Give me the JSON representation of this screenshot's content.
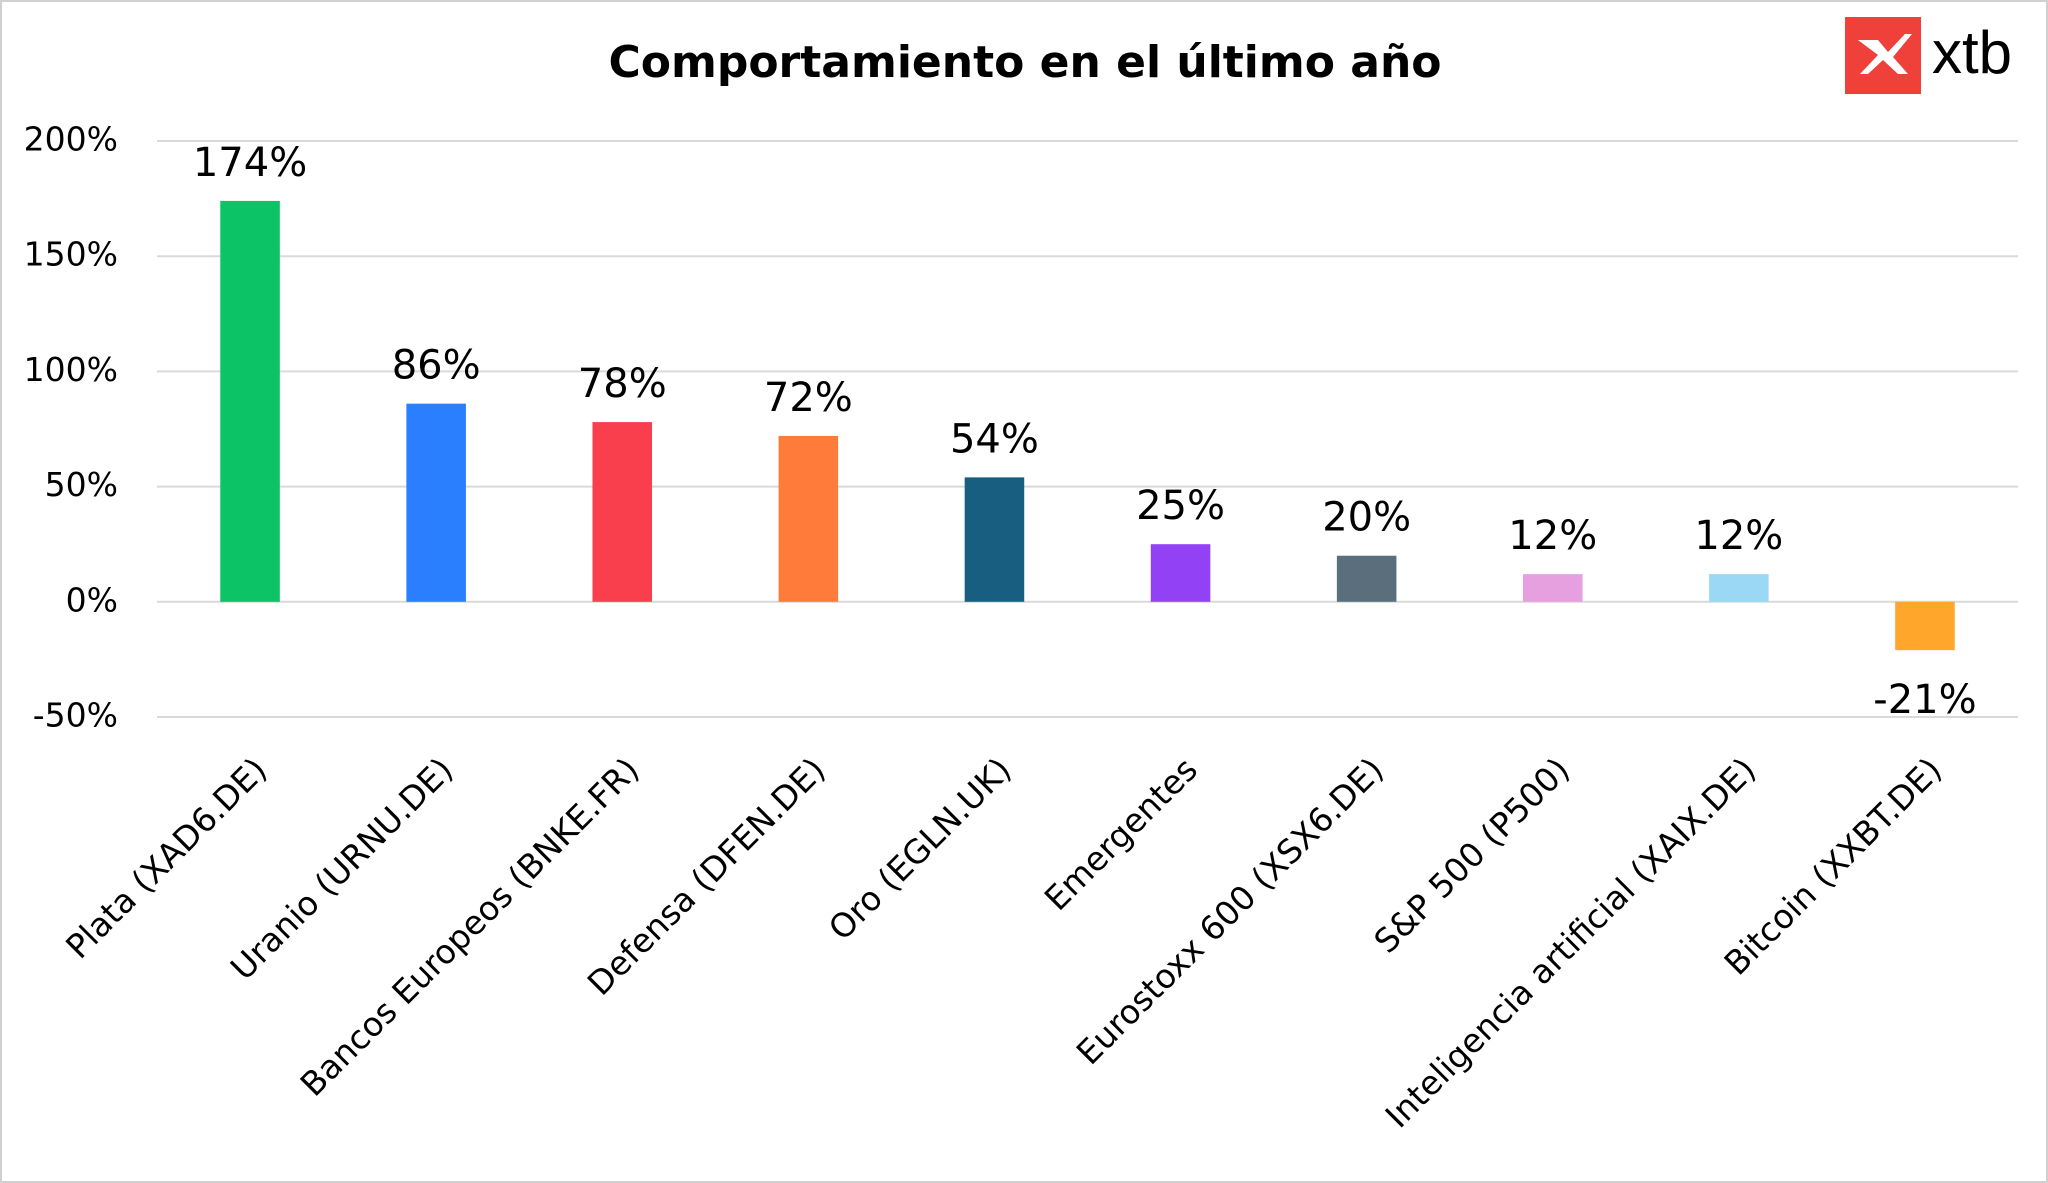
{
  "chart_data": {
    "type": "bar",
    "title": "Comportamiento en el último año",
    "logo": "xtb",
    "categories": [
      "Plata (XAD6.DE)",
      "Uranio (URNU.DE)",
      "Bancos Europeos (BNKE.FR)",
      "Defensa (DFEN.DE)",
      "Oro (EGLN.UK)",
      "Emergentes",
      "Eurostoxx 600 (XSX6.DE)",
      "S&P 500 (P500)",
      "Inteligencia artificial (XAIX.DE)",
      "Bitcoin (XXBT.DE)"
    ],
    "values": [
      174,
      86,
      78,
      72,
      54,
      25,
      20,
      12,
      12,
      -21
    ],
    "value_labels": [
      "174%",
      "86%",
      "78%",
      "72%",
      "54%",
      "25%",
      "20%",
      "12%",
      "12%",
      "-21%"
    ],
    "colors": [
      "#0cc466",
      "#2a7fff",
      "#f93e4e",
      "#ff7b39",
      "#175e80",
      "#9241f4",
      "#5a6e7b",
      "#e6a0e0",
      "#9ad8f5",
      "#ffa62b"
    ],
    "ylim": [
      -50,
      200
    ],
    "yticks": [
      {
        "value": -50,
        "label": "-50%"
      },
      {
        "value": 0,
        "label": "0%"
      },
      {
        "value": 50,
        "label": "50%"
      },
      {
        "value": 100,
        "label": "100%"
      },
      {
        "value": 150,
        "label": "150%"
      },
      {
        "value": 200,
        "label": "200%"
      }
    ],
    "grid": true
  }
}
